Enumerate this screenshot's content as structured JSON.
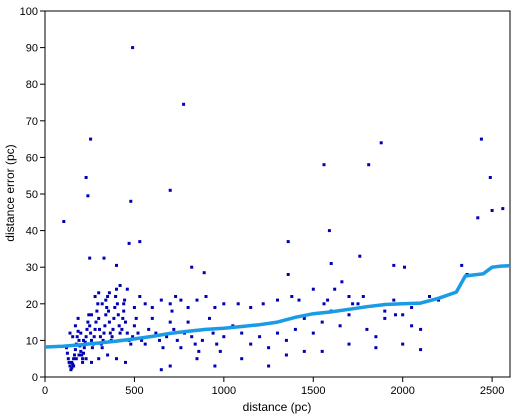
{
  "chart_data": {
    "type": "scatter",
    "title": "",
    "xlabel": "distance (pc)",
    "ylabel": "distance error (pc)",
    "xlim": [
      0,
      2600
    ],
    "ylim": [
      0,
      100
    ],
    "x_ticks": [
      0,
      500,
      1000,
      1500,
      2000,
      2500
    ],
    "y_ticks": [
      0,
      10,
      20,
      30,
      40,
      50,
      60,
      70,
      80,
      90,
      100
    ],
    "grid": false,
    "legend": "none",
    "colors": {
      "points": "#0000b4",
      "trend": "#1a9be6",
      "axis": "#000000"
    },
    "series": [
      {
        "kind": "points",
        "points": [
          [
            105,
            42.5
          ],
          [
            490,
            90
          ],
          [
            775,
            74.5
          ],
          [
            255,
            65
          ],
          [
            230,
            54.5
          ],
          [
            240,
            49.5
          ],
          [
            480,
            48
          ],
          [
            700,
            51
          ],
          [
            1560,
            58
          ],
          [
            1810,
            58
          ],
          [
            1880,
            64
          ],
          [
            2440,
            65
          ],
          [
            2490,
            54.5
          ],
          [
            2500,
            45.5
          ],
          [
            2560,
            46
          ],
          [
            2420,
            43.5
          ],
          [
            1590,
            40
          ],
          [
            1360,
            37
          ],
          [
            1760,
            33
          ],
          [
            1600,
            31
          ],
          [
            530,
            37
          ],
          [
            470,
            36.5
          ],
          [
            250,
            32.5
          ],
          [
            330,
            32.5
          ],
          [
            400,
            30.5
          ],
          [
            820,
            30
          ],
          [
            890,
            28.5
          ],
          [
            1360,
            28
          ],
          [
            2330,
            30.5
          ],
          [
            2360,
            28
          ],
          [
            1950,
            30.5
          ],
          [
            2010,
            30
          ],
          [
            120,
            8
          ],
          [
            125,
            6.5
          ],
          [
            130,
            5
          ],
          [
            135,
            4
          ],
          [
            140,
            3
          ],
          [
            145,
            2
          ],
          [
            150,
            2.5
          ],
          [
            155,
            3.5
          ],
          [
            160,
            5
          ],
          [
            165,
            6
          ],
          [
            170,
            7.5
          ],
          [
            175,
            9
          ],
          [
            180,
            11
          ],
          [
            185,
            12.5
          ],
          [
            190,
            10
          ],
          [
            195,
            8.5
          ],
          [
            200,
            7
          ],
          [
            205,
            6
          ],
          [
            210,
            5
          ],
          [
            215,
            6.5
          ],
          [
            220,
            8
          ],
          [
            225,
            9.5
          ],
          [
            230,
            11
          ],
          [
            235,
            13
          ],
          [
            240,
            15
          ],
          [
            245,
            17
          ],
          [
            250,
            14
          ],
          [
            255,
            12
          ],
          [
            260,
            10
          ],
          [
            265,
            8
          ],
          [
            270,
            9
          ],
          [
            275,
            11
          ],
          [
            280,
            13
          ],
          [
            285,
            15
          ],
          [
            290,
            18
          ],
          [
            295,
            20
          ],
          [
            300,
            16
          ],
          [
            305,
            13
          ],
          [
            310,
            11
          ],
          [
            315,
            9
          ],
          [
            320,
            8
          ],
          [
            325,
            10
          ],
          [
            330,
            12
          ],
          [
            335,
            14
          ],
          [
            340,
            17
          ],
          [
            345,
            19
          ],
          [
            350,
            22
          ],
          [
            355,
            18
          ],
          [
            360,
            15
          ],
          [
            365,
            12
          ],
          [
            370,
            10
          ],
          [
            375,
            11
          ],
          [
            380,
            13
          ],
          [
            385,
            16
          ],
          [
            390,
            19
          ],
          [
            395,
            22
          ],
          [
            400,
            24
          ],
          [
            405,
            20
          ],
          [
            410,
            17
          ],
          [
            415,
            14
          ],
          [
            420,
            12
          ],
          [
            425,
            10
          ],
          [
            430,
            13
          ],
          [
            435,
            16
          ],
          [
            440,
            18
          ],
          [
            445,
            21
          ],
          [
            450,
            15
          ],
          [
            460,
            12
          ],
          [
            470,
            10
          ],
          [
            480,
            9
          ],
          [
            490,
            11
          ],
          [
            500,
            14
          ],
          [
            510,
            16
          ],
          [
            520,
            12
          ],
          [
            540,
            10
          ],
          [
            560,
            9
          ],
          [
            580,
            13
          ],
          [
            600,
            16
          ],
          [
            620,
            12
          ],
          [
            640,
            10
          ],
          [
            660,
            8
          ],
          [
            680,
            11
          ],
          [
            700,
            15
          ],
          [
            710,
            18
          ],
          [
            720,
            13
          ],
          [
            740,
            10
          ],
          [
            760,
            8
          ],
          [
            780,
            12
          ],
          [
            800,
            15
          ],
          [
            820,
            11
          ],
          [
            840,
            9
          ],
          [
            860,
            7
          ],
          [
            880,
            10
          ],
          [
            900,
            13
          ],
          [
            920,
            16
          ],
          [
            940,
            12
          ],
          [
            960,
            9
          ],
          [
            980,
            7
          ],
          [
            1000,
            11
          ],
          [
            1050,
            14
          ],
          [
            1100,
            12
          ],
          [
            1150,
            9
          ],
          [
            1200,
            11
          ],
          [
            1250,
            8
          ],
          [
            1300,
            12
          ],
          [
            1350,
            10
          ],
          [
            1400,
            13
          ],
          [
            1450,
            16
          ],
          [
            1500,
            12
          ],
          [
            1550,
            15
          ],
          [
            1600,
            18
          ],
          [
            1650,
            14
          ],
          [
            1700,
            17
          ],
          [
            1750,
            20
          ],
          [
            1800,
            13
          ],
          [
            1850,
            11
          ],
          [
            1900,
            16
          ],
          [
            1950,
            21
          ],
          [
            2000,
            17
          ],
          [
            2050,
            19
          ],
          [
            2100,
            13
          ],
          [
            2150,
            22
          ],
          [
            140,
            12
          ],
          [
            155,
            11
          ],
          [
            170,
            14
          ],
          [
            185,
            16
          ],
          [
            200,
            12
          ],
          [
            215,
            10
          ],
          [
            260,
            17
          ],
          [
            280,
            22
          ],
          [
            300,
            23
          ],
          [
            320,
            20
          ],
          [
            340,
            21
          ],
          [
            360,
            23
          ],
          [
            420,
            25
          ],
          [
            440,
            20
          ],
          [
            460,
            24
          ],
          [
            500,
            19
          ],
          [
            530,
            22
          ],
          [
            560,
            20
          ],
          [
            600,
            19
          ],
          [
            650,
            21
          ],
          [
            700,
            20
          ],
          [
            730,
            22
          ],
          [
            760,
            21
          ],
          [
            800,
            19
          ],
          [
            850,
            21
          ],
          [
            900,
            22
          ],
          [
            950,
            19
          ],
          [
            1000,
            20
          ],
          [
            1080,
            20
          ],
          [
            1150,
            19
          ],
          [
            1220,
            20
          ],
          [
            1300,
            21
          ],
          [
            1380,
            22
          ],
          [
            1420,
            21
          ],
          [
            1500,
            24
          ],
          [
            1560,
            20
          ],
          [
            1580,
            21
          ],
          [
            1620,
            24
          ],
          [
            1660,
            26
          ],
          [
            1700,
            22
          ],
          [
            1720,
            20
          ],
          [
            1780,
            22
          ],
          [
            1900,
            18
          ],
          [
            1960,
            17
          ],
          [
            2050,
            14
          ],
          [
            2200,
            21
          ],
          [
            150,
            4
          ],
          [
            160,
            3
          ],
          [
            175,
            5
          ],
          [
            190,
            6
          ],
          [
            210,
            4
          ],
          [
            230,
            5
          ],
          [
            260,
            4
          ],
          [
            300,
            5
          ],
          [
            350,
            6
          ],
          [
            400,
            5
          ],
          [
            450,
            4
          ],
          [
            650,
            2
          ],
          [
            700,
            3
          ],
          [
            850,
            5
          ],
          [
            950,
            3
          ],
          [
            1100,
            5
          ],
          [
            1250,
            3
          ],
          [
            1350,
            6
          ],
          [
            1450,
            7
          ],
          [
            1550,
            7
          ],
          [
            1700,
            9
          ],
          [
            1850,
            8
          ],
          [
            2000,
            9
          ],
          [
            2100,
            7.5
          ]
        ]
      },
      {
        "kind": "trend",
        "points": [
          [
            0,
            8.2
          ],
          [
            100,
            8.4
          ],
          [
            200,
            8.8
          ],
          [
            300,
            9.3
          ],
          [
            400,
            9.8
          ],
          [
            500,
            10.4
          ],
          [
            600,
            11.1
          ],
          [
            700,
            11.9
          ],
          [
            800,
            12.5
          ],
          [
            900,
            13
          ],
          [
            1000,
            13.3
          ],
          [
            1100,
            13.8
          ],
          [
            1200,
            14.3
          ],
          [
            1300,
            15
          ],
          [
            1400,
            16.3
          ],
          [
            1500,
            17.3
          ],
          [
            1600,
            17.8
          ],
          [
            1700,
            18.5
          ],
          [
            1800,
            19.2
          ],
          [
            1900,
            19.8
          ],
          [
            2000,
            20
          ],
          [
            2100,
            20.2
          ],
          [
            2200,
            21.5
          ],
          [
            2300,
            23.2
          ],
          [
            2350,
            27.6
          ],
          [
            2400,
            27.9
          ],
          [
            2450,
            28.2
          ],
          [
            2500,
            30
          ],
          [
            2550,
            30.3
          ],
          [
            2600,
            30.4
          ]
        ]
      }
    ]
  }
}
